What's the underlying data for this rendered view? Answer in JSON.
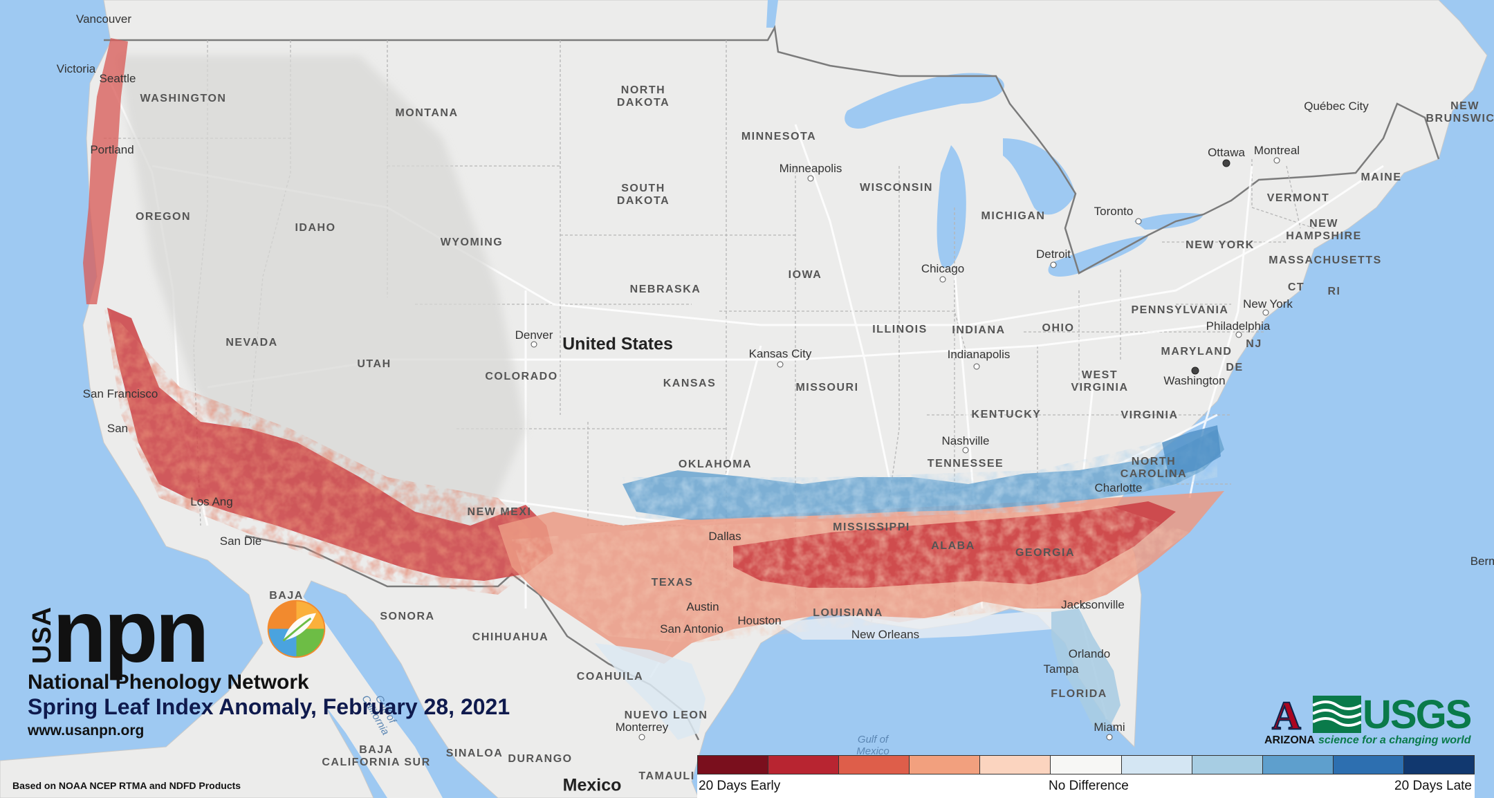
{
  "title": "Spring Leaf Index Anomaly, February 28, 2021",
  "organization": {
    "usa": "USA",
    "acronym": "npn",
    "name": "National Phenology Network",
    "website": "www.usanpn.org"
  },
  "source_note": "Based on NOAA NCEP RTMA and NDFD Products",
  "legend": {
    "colors": [
      "#7a0f1d",
      "#b82531",
      "#de5e4a",
      "#f2a07e",
      "#fbd4bf",
      "#f7f7f5",
      "#d4e6f3",
      "#a7cde3",
      "#5e9fcd",
      "#2d6fb0",
      "#11386f"
    ],
    "labels": {
      "early": "20 Days Early",
      "middle": "No Difference",
      "late": "20 Days Late"
    }
  },
  "partners": {
    "arizona_letter": "A",
    "arizona_name": "ARIZONA",
    "usgs_name": "USGS",
    "usgs_tagline": "science for a changing world"
  },
  "map": {
    "country_labels": {
      "us": "United States",
      "mexico": "Mexico"
    },
    "states": {
      "washington": "WASHINGTON",
      "oregon": "OREGON",
      "idaho": "IDAHO",
      "montana": "MONTANA",
      "wyoming": "WYOMING",
      "nevada": "NEVADA",
      "utah": "UTAH",
      "colorado": "COLORADO",
      "north_dakota": "NORTH\nDAKOTA",
      "south_dakota": "SOUTH\nDAKOTA",
      "nebraska": "NEBRASKA",
      "kansas": "KANSAS",
      "oklahoma": "OKLAHOMA",
      "new_mexico": "NEW MEXI",
      "texas": "TEXAS",
      "minnesota": "MINNESOTA",
      "iowa": "IOWA",
      "missouri": "MISSOURI",
      "wisconsin": "WISCONSIN",
      "illinois": "ILLINOIS",
      "michigan": "MICHIGAN",
      "indiana": "INDIANA",
      "ohio": "OHIO",
      "kentucky": "KENTUCKY",
      "tennessee": "TENNESSEE",
      "mississippi": "MISSISSIPPI",
      "alabama": "ALABA",
      "georgia": "GEORGIA",
      "louisiana": "LOUISIANA",
      "florida": "FLORIDA",
      "north_carolina": "NORTH\nCAROLINA",
      "virginia": "VIRGINIA",
      "west_virginia": "WEST\nVIRGINIA",
      "pennsylvania": "PENNSYLVANIA",
      "new_york": "NEW YORK",
      "maryland": "MARYLAND",
      "vermont": "VERMONT",
      "new_hampshire": "NEW\nHAMPSHIRE",
      "massachusetts": "MASSACHUSETTS",
      "maine": "MAINE",
      "ct": "CT",
      "ri": "RI",
      "nj": "NJ",
      "de": "DE",
      "new_brunswick": "NEW\nBRUNSWICK",
      "sonora": "SONORA",
      "chihuahua": "CHIHUAHUA",
      "coahuila": "COAHUILA",
      "nuevo_leon": "NUEVO LEON",
      "baja_california": "BAJA",
      "baja_california_sur": "BAJA\nCALIFORNIA SUR",
      "sinaloa": "SINALOA",
      "durango": "DURANGO",
      "tamaulipas": "TAMAULI"
    },
    "cities": {
      "vancouver": "Vancouver",
      "victoria": "Victoria",
      "seattle": "Seattle",
      "portland": "Portland",
      "san_francisco": "San Francisco",
      "san_jose": "San",
      "los_angeles": "Los Ang",
      "san_diego": "San Die",
      "denver": "Denver",
      "kansas_city": "Kansas City",
      "minneapolis": "Minneapolis",
      "chicago": "Chicago",
      "detroit": "Detroit",
      "toronto": "Toronto",
      "ottawa": "Ottawa",
      "montreal": "Montreal",
      "quebec_city": "Québec City",
      "indianapolis": "Indianapolis",
      "nashville": "Nashville",
      "charlotte": "Charlotte",
      "philadelphia": "Philadelphia",
      "new_york": "New York",
      "washington": "Washington",
      "jacksonville": "Jacksonville",
      "orlando": "Orlando",
      "tampa": "Tampa",
      "miami": "Miami",
      "houston": "Houston",
      "austin": "Austin",
      "san_antonio": "San Antonio",
      "new_orleans": "New Orleans",
      "dallas": "Dallas",
      "monterrey": "Monterrey",
      "bermuda": "Berm"
    },
    "water": {
      "gulf_mexico": "Gulf of\nMexico",
      "gulf_california": "Gulf of\nCalifornia"
    }
  }
}
